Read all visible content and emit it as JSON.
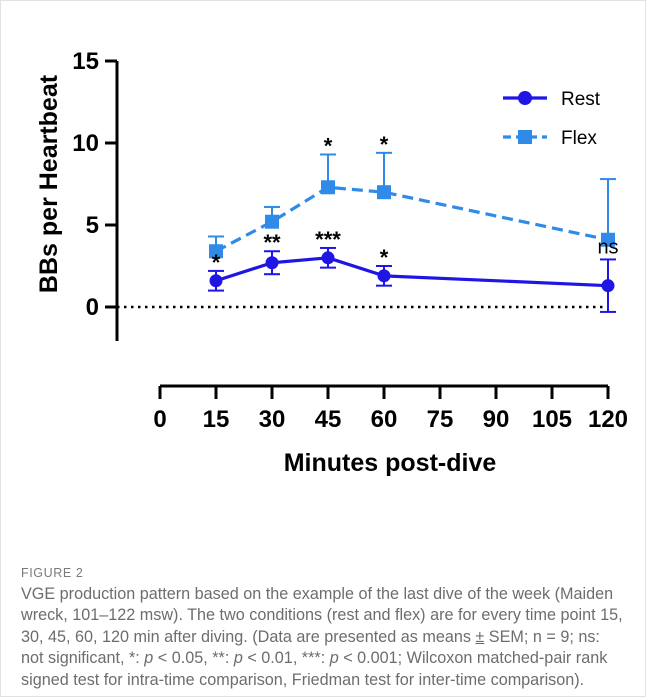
{
  "chart_data": {
    "type": "line",
    "ylabel": "BBs per Heartbeat",
    "xlabel": "Minutes post-dive",
    "ylim": [
      0,
      15
    ],
    "y_ticks": [
      "0",
      "5",
      "10",
      "15"
    ],
    "x_ticks": [
      "0",
      "15",
      "30",
      "45",
      "60",
      "75",
      "90",
      "105",
      "120"
    ],
    "reference_line": {
      "y": 0,
      "style": "dotted"
    },
    "legend_position": "top-right",
    "x": [
      15,
      30,
      45,
      60,
      120
    ],
    "series": [
      {
        "name": "Rest",
        "color": "#1f16e6",
        "line_style": "solid",
        "marker": "circle",
        "values": [
          1.6,
          2.7,
          3.0,
          1.9,
          1.3
        ],
        "error_upper": [
          0.6,
          0.7,
          0.6,
          0.6,
          1.6
        ],
        "error_lower": [
          0.6,
          0.7,
          0.6,
          0.6,
          1.6
        ],
        "significance": [
          "*",
          "**",
          "***",
          "*",
          "ns"
        ]
      },
      {
        "name": "Flex",
        "color": "#2f8ae8",
        "line_style": "dashed",
        "marker": "square",
        "values": [
          3.4,
          5.2,
          7.3,
          7.0,
          4.1
        ],
        "error_upper": [
          0.9,
          0.9,
          2.0,
          2.4,
          3.7
        ],
        "significance": [
          "",
          "",
          "*",
          "*",
          ""
        ]
      }
    ]
  },
  "caption": {
    "label": "FIGURE 2",
    "text_1": "VGE production pattern based on the example of the last dive of the week (Maiden wreck, 101–122 msw). The two conditions (rest and flex) are for every time point 15, 30, 45, 60, 120 min after diving. (Data are presented as means ",
    "pm": "±",
    "text_2": " SEM; n = 9; ns: not significant, *: ",
    "p1": "p",
    "text_3": " < 0.05, **: ",
    "p2": "p",
    "text_4": " < 0.01, ***: ",
    "p3": "p",
    "text_5": " < 0.001; Wilcoxon matched-pair rank signed test for intra-time comparison, Friedman test for inter-time comparison)."
  }
}
